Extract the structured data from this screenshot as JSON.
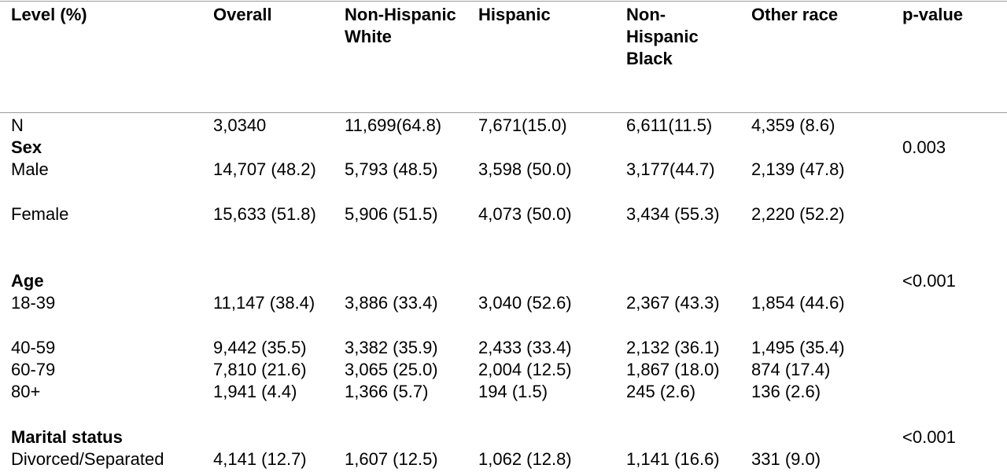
{
  "header": {
    "level": "Level (%)",
    "overall": "Overall",
    "nh_white": "Non-Hispanic White",
    "hispanic": "Hispanic",
    "nh_black": "Non-Hispanic Black",
    "other": "Other race",
    "pvalue": "p-value"
  },
  "rows": {
    "n": {
      "label": "N",
      "overall": "3,0340",
      "nh_white": "11,699(64.8)",
      "hispanic": "7,671(15.0)",
      "nh_black": "6,611(11.5)",
      "other": "4,359 (8.6)"
    },
    "sex": {
      "label": "Sex",
      "pvalue": "0.003",
      "male": {
        "label": "Male",
        "overall": "14,707 (48.2)",
        "nh_white": "5,793 (48.5)",
        "hispanic": "3,598 (50.0)",
        "nh_black": "3,177(44.7)",
        "other": "2,139 (47.8)"
      },
      "female": {
        "label": "Female",
        "overall": "15,633 (51.8)",
        "nh_white": "5,906 (51.5)",
        "hispanic": "4,073 (50.0)",
        "nh_black": "3,434 (55.3)",
        "other": "2,220 (52.2)"
      }
    },
    "age": {
      "label": "Age",
      "pvalue": "<0.001",
      "a18_39": {
        "label": "18-39",
        "overall": "11,147 (38.4)",
        "nh_white": "3,886 (33.4)",
        "hispanic": "3,040 (52.6)",
        "nh_black": "2,367 (43.3)",
        "other": "1,854 (44.6)"
      },
      "a40_59": {
        "label": "40-59",
        "overall": "9,442 (35.5)",
        "nh_white": "3,382 (35.9)",
        "hispanic": "2,433 (33.4)",
        "nh_black": "2,132 (36.1)",
        "other": "1,495 (35.4)"
      },
      "a60_79": {
        "label": "60-79",
        "overall": "7,810 (21.6)",
        "nh_white": "3,065 (25.0)",
        "hispanic": "2,004 (12.5)",
        "nh_black": "1,867 (18.0)",
        "other": "874 (17.4)"
      },
      "a80": {
        "label": "80+",
        "overall": "1,941 (4.4)",
        "nh_white": "1,366 (5.7)",
        "hispanic": "194 (1.5)",
        "nh_black": "245 (2.6)",
        "other": "136 (2.6)"
      }
    },
    "marital": {
      "label": "Marital status",
      "pvalue": "<0.001",
      "divorced": {
        "label": "Divorced/Separated",
        "overall": "4,141 (12.7)",
        "nh_white": "1,607 (12.5)",
        "hispanic": "1,062 (12.8)",
        "nh_black": "1,141 (16.6)",
        "other": "331 (9.0)"
      }
    }
  }
}
